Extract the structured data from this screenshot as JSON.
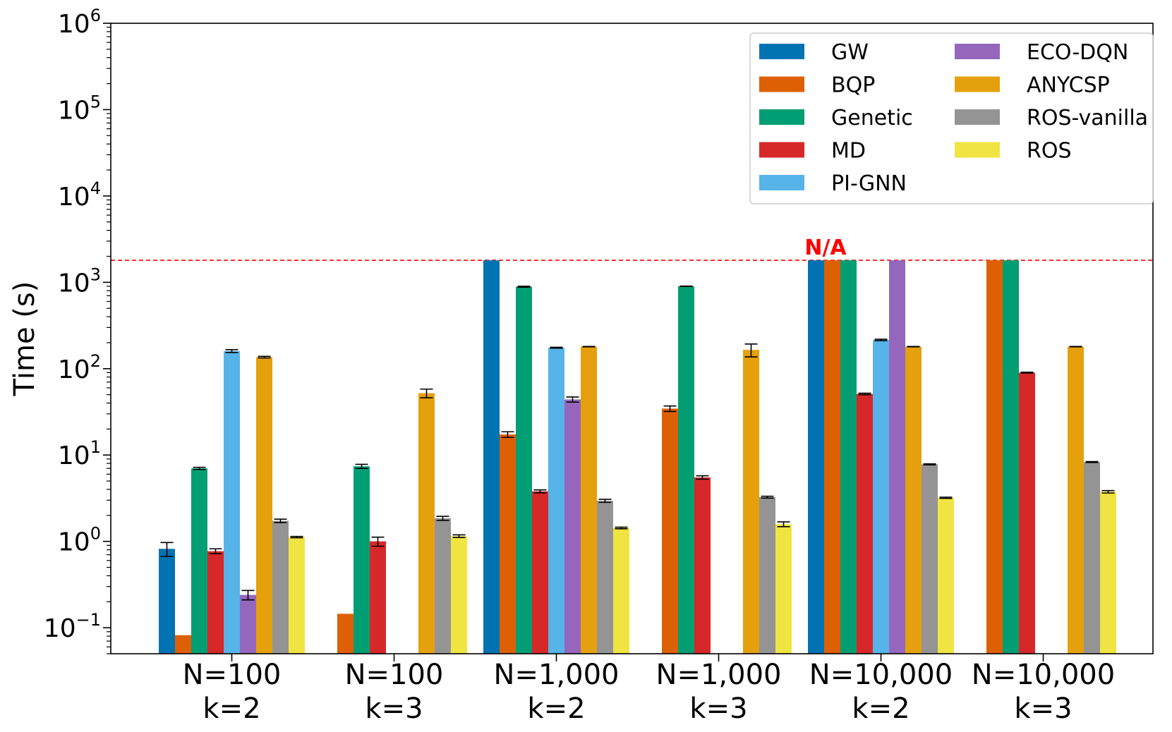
{
  "chart_data": {
    "type": "bar",
    "ylabel": "Time (s)",
    "yscale": "log",
    "ylim": [
      0.05,
      1000000
    ],
    "y_ticks": [
      {
        "value": 0.1,
        "base": "10",
        "exp": "−1"
      },
      {
        "value": 1,
        "base": "10",
        "exp": "0"
      },
      {
        "value": 10,
        "base": "10",
        "exp": "1"
      },
      {
        "value": 100,
        "base": "10",
        "exp": "2"
      },
      {
        "value": 1000,
        "base": "10",
        "exp": "3"
      },
      {
        "value": 10000,
        "base": "10",
        "exp": "4"
      },
      {
        "value": 100000,
        "base": "10",
        "exp": "5"
      },
      {
        "value": 1000000,
        "base": "10",
        "exp": "6"
      }
    ],
    "categories": [
      {
        "line1": "N=100",
        "line2": "k=2"
      },
      {
        "line1": "N=100",
        "line2": "k=3"
      },
      {
        "line1": "N=1,000",
        "line2": "k=2"
      },
      {
        "line1": "N=1,000",
        "line2": "k=3"
      },
      {
        "line1": "N=10,000",
        "line2": "k=2"
      },
      {
        "line1": "N=10,000",
        "line2": "k=3"
      }
    ],
    "threshold": {
      "value": 1800,
      "label": "N/A",
      "color": "#ff0000"
    },
    "legend": {
      "position": "top-right",
      "columns": 2
    },
    "series": [
      {
        "name": "GW",
        "color": "#0173b2",
        "values": [
          0.82,
          null,
          1800,
          null,
          1800,
          null
        ],
        "errors": [
          0.15,
          null,
          0,
          null,
          0,
          null
        ]
      },
      {
        "name": "BQP",
        "color": "#de6004",
        "values": [
          0.082,
          0.145,
          17.3,
          34.5,
          1800,
          1800
        ],
        "errors": [
          0,
          0,
          1.3,
          2.5,
          0,
          0
        ]
      },
      {
        "name": "Genetic",
        "color": "#029e73",
        "values": [
          7.0,
          7.4,
          890,
          900,
          1800,
          1800
        ],
        "errors": [
          0.2,
          0.4,
          10,
          5,
          0,
          0
        ]
      },
      {
        "name": "MD",
        "color": "#d62829",
        "values": [
          0.77,
          1.0,
          3.8,
          5.5,
          51,
          90
        ],
        "errors": [
          0.05,
          0.12,
          0.15,
          0.25,
          1,
          1
        ]
      },
      {
        "name": "PI-GNN",
        "color": "#56b4e9",
        "values": [
          160,
          null,
          175,
          null,
          215,
          null
        ],
        "errors": [
          6,
          null,
          2,
          null,
          4,
          null
        ]
      },
      {
        "name": "ECO-DQN",
        "color": "#9467bd",
        "values": [
          0.24,
          null,
          44,
          null,
          1800,
          null
        ],
        "errors": [
          0.03,
          null,
          3,
          null,
          0,
          null
        ]
      },
      {
        "name": "ANYCSP",
        "color": "#e5a00d",
        "values": [
          136,
          52,
          180,
          165,
          180,
          180
        ],
        "errors": [
          3,
          6,
          1,
          28,
          1,
          1
        ]
      },
      {
        "name": "ROS-vanilla",
        "color": "#949494",
        "values": [
          1.73,
          1.85,
          2.95,
          3.25,
          7.8,
          8.3
        ],
        "errors": [
          0.08,
          0.1,
          0.12,
          0.08,
          0.1,
          0.1
        ]
      },
      {
        "name": "ROS",
        "color": "#f0e442",
        "values": [
          1.12,
          1.15,
          1.43,
          1.58,
          3.2,
          3.75
        ],
        "errors": [
          0.02,
          0.04,
          0.03,
          0.1,
          0.05,
          0.12
        ]
      }
    ]
  }
}
